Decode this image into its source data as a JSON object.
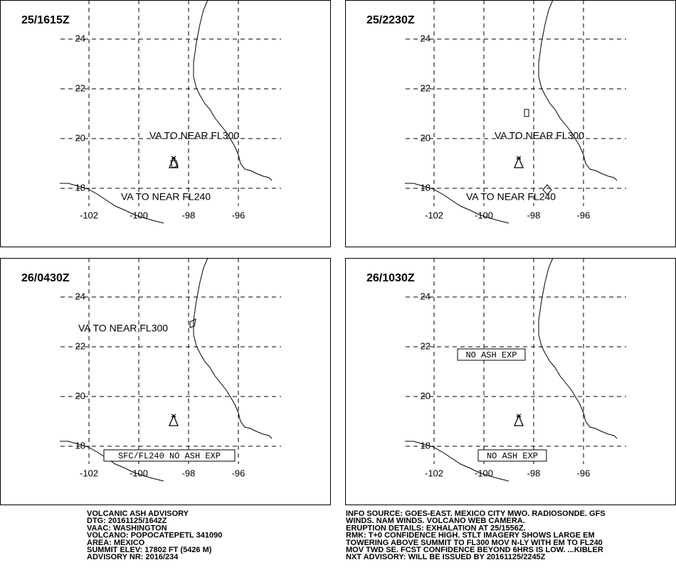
{
  "panels": [
    {
      "title": "25/1615Z",
      "lats": [
        24,
        22,
        20,
        18
      ],
      "lons": [
        -102,
        -100,
        -98,
        -96
      ],
      "labels": [
        "VA TO NEAR FL300",
        "VA TO NEAR FL240"
      ],
      "boxed_labels": []
    },
    {
      "title": "25/2230Z",
      "lats": [
        24,
        22,
        20,
        18
      ],
      "lons": [
        -102,
        -100,
        -98,
        -96
      ],
      "labels": [
        "VA TO NEAR FL300",
        "VA TO NEAR FL240"
      ],
      "boxed_labels": []
    },
    {
      "title": "26/0430Z",
      "lats": [
        24,
        22,
        20,
        18
      ],
      "lons": [
        -102,
        -100,
        -98,
        -96
      ],
      "labels": [
        "VA TO NEAR FL300"
      ],
      "boxed_labels": [
        "SFC/FL240 NO ASH EXP"
      ]
    },
    {
      "title": "26/1030Z",
      "lats": [
        24,
        22,
        20,
        18
      ],
      "lons": [
        -102,
        -100,
        -98,
        -96
      ],
      "labels": [],
      "boxed_labels": [
        "NO ASH EXP",
        "NO ASH EXP"
      ]
    }
  ],
  "footer": {
    "left": [
      "VOLCANIC ASH ADVISORY",
      "DTG: 20161125/1642Z",
      "VAAC: WASHINGTON",
      "VOLCANO: POPOCATEPETL 341090",
      "AREA: MEXICO",
      "SUMMIT ELEV: 17802 FT (5426 M)",
      "ADVISORY NR: 2016/234"
    ],
    "right": [
      "INFO SOURCE: GOES-EAST. MEXICO CITY MWO. RADIOSONDE. GFS",
      "WINDS. NAM WINDS. VOLCANO WEB CAMERA.",
      "ERUPTION DETAILS: EXHALATION AT 25/1556Z.",
      "RMK: T+0 CONFIDENCE HIGH. STLT IMAGERY SHOWS LARGE EM",
      "TOWERING ABOVE SUMMIT TO FL300 MOV N-LY WITH EM TO FL240",
      "MOV TWD SE. FCST CONFIDENCE BEYOND 6HRS IS LOW. ...KIBLER",
      "NXT ADVISORY: WILL BE ISSUED BY 20161125/2245Z"
    ]
  }
}
